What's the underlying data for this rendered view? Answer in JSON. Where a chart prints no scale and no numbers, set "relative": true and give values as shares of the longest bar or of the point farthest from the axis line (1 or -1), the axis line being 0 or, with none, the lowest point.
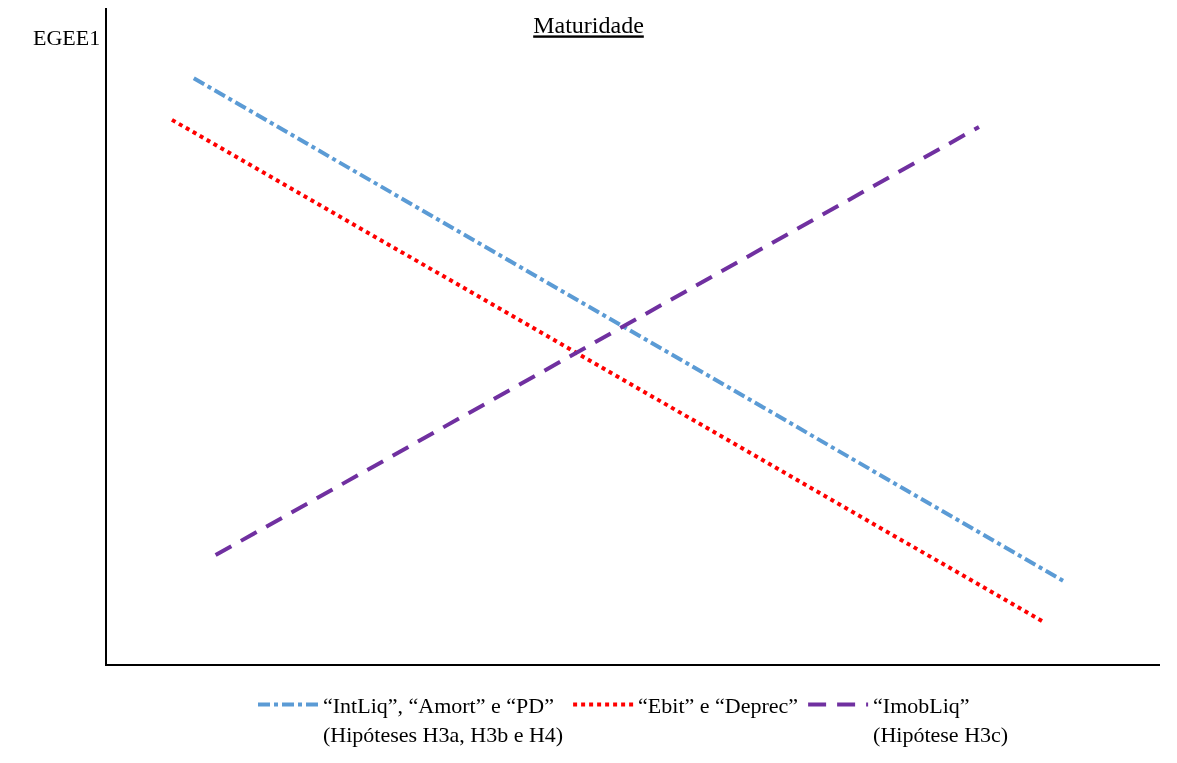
{
  "chart_data": {
    "type": "line",
    "title": "Maturidade",
    "ylabel": "EGEE1",
    "relative": true,
    "legend": "bottom",
    "marker": "none",
    "categories": [
      null,
      null,
      null,
      null,
      null,
      null,
      null,
      null,
      null,
      null,
      null,
      null,
      null,
      null,
      null,
      null,
      null,
      null,
      null,
      null,
      null,
      null,
      null,
      null,
      null,
      null,
      null,
      null,
      null,
      null,
      null,
      null,
      null,
      null,
      null,
      null,
      null,
      null,
      null,
      null,
      null,
      null
    ],
    "series": [
      {
        "name": "“IntLiq”, “Amort” e “PD”\n(Hipóteses H3a, H3b e H4)",
        "color": "#5b9bd5",
        "line_style": "dashdot",
        "values": [
          null,
          1,
          null,
          null,
          null,
          null,
          null,
          null,
          null,
          null,
          null,
          null,
          null,
          null,
          null,
          null,
          null,
          null,
          null,
          null,
          null,
          null,
          null,
          null,
          null,
          null,
          null,
          null,
          null,
          null,
          null,
          null,
          null,
          null,
          null,
          null,
          null,
          null,
          null,
          null,
          null,
          0.139
        ]
      },
      {
        "name": "“Ebit” e “Deprec”",
        "color": "#ff0000",
        "line_style": "dotted",
        "values": [
          0.929,
          null,
          null,
          null,
          null,
          null,
          null,
          null,
          null,
          null,
          null,
          null,
          null,
          null,
          null,
          null,
          null,
          null,
          null,
          null,
          null,
          null,
          null,
          null,
          null,
          null,
          null,
          null,
          null,
          null,
          null,
          null,
          null,
          null,
          null,
          null,
          null,
          null,
          null,
          null,
          0.071,
          null
        ]
      },
      {
        "name": "“ImobLiq”\n(Hipótese H3c)",
        "color": "#7030a0",
        "line_style": "dashed",
        "values": [
          null,
          null,
          0.186,
          null,
          null,
          null,
          null,
          null,
          null,
          null,
          null,
          null,
          null,
          null,
          null,
          null,
          null,
          null,
          null,
          null,
          null,
          null,
          null,
          null,
          null,
          null,
          null,
          null,
          null,
          null,
          null,
          null,
          null,
          null,
          null,
          null,
          null,
          0.917,
          null,
          null,
          null,
          null
        ]
      }
    ]
  }
}
